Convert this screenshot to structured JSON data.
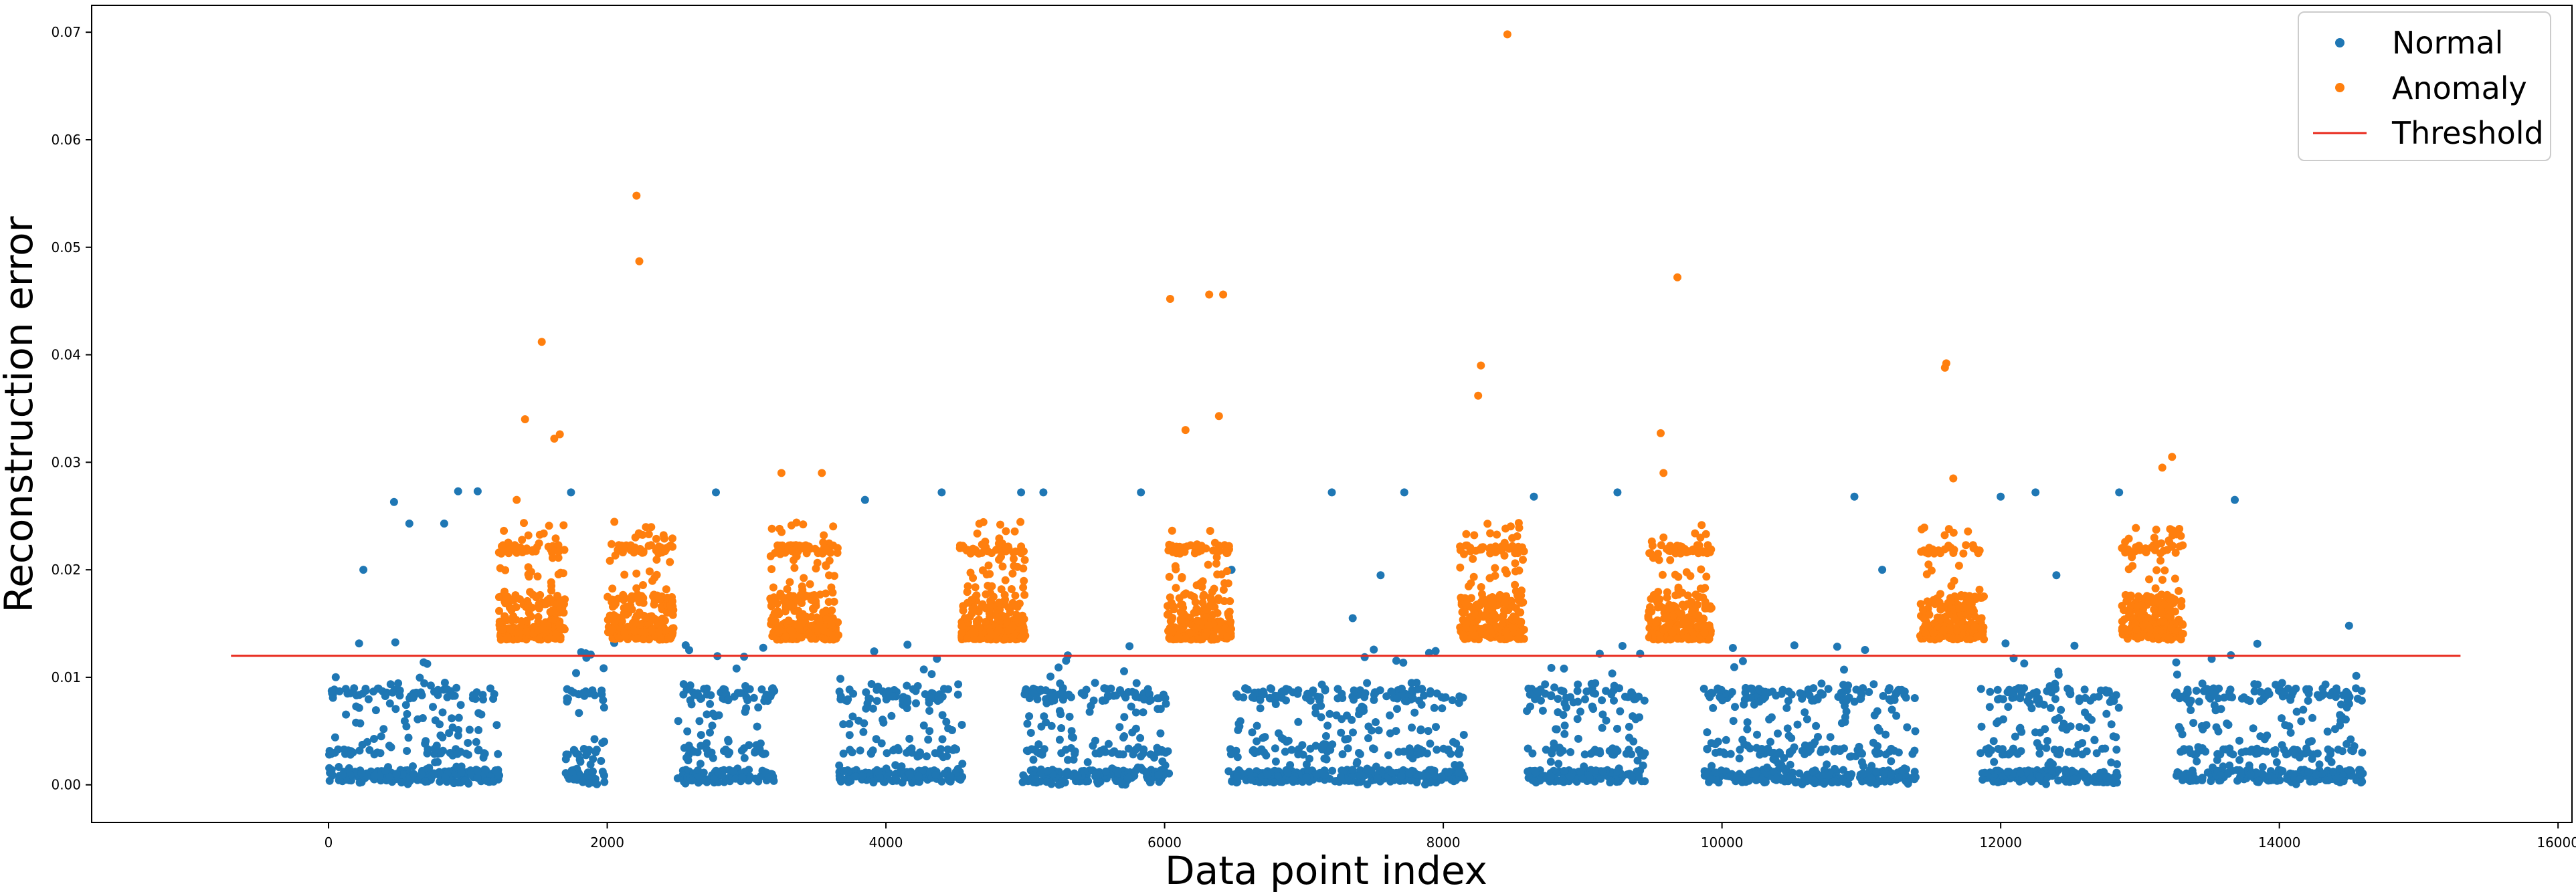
{
  "chart_data": {
    "type": "scatter",
    "title": "",
    "xlabel": "Data point index",
    "ylabel": "Reconstruction error",
    "xlim": [
      -1700,
      16100
    ],
    "ylim": [
      -0.0035,
      0.0725
    ],
    "xticks": [
      0,
      2000,
      4000,
      6000,
      8000,
      10000,
      12000,
      14000,
      16000
    ],
    "xtick_labels": [
      "0",
      "2000",
      "4000",
      "6000",
      "8000",
      "10000",
      "12000",
      "14000",
      "16000"
    ],
    "yticks": [
      0.0,
      0.01,
      0.02,
      0.03,
      0.04,
      0.05,
      0.06,
      0.07
    ],
    "ytick_labels": [
      "0.00",
      "0.01",
      "0.02",
      "0.03",
      "0.04",
      "0.05",
      "0.06",
      "0.07"
    ],
    "grid": false,
    "legend_position": "top-right",
    "legend": [
      "Normal",
      "Anomaly",
      "Threshold"
    ],
    "colors": {
      "normal": "#1f77b4",
      "anomaly": "#ff7f0e",
      "threshold": "#e8291c"
    },
    "threshold": {
      "value": 0.012,
      "x_range": [
        -700,
        15300
      ]
    },
    "normal_clusters": [
      {
        "x_range": [
          0,
          1230
        ]
      },
      {
        "x_range": [
          1700,
          1980
        ]
      },
      {
        "x_range": [
          2500,
          3200
        ]
      },
      {
        "x_range": [
          3660,
          4550
        ]
      },
      {
        "x_range": [
          4980,
          6050
        ]
      },
      {
        "x_range": [
          6450,
          8150
        ]
      },
      {
        "x_range": [
          8600,
          9450
        ]
      },
      {
        "x_range": [
          9870,
          11400
        ]
      },
      {
        "x_range": [
          11850,
          12850
        ]
      },
      {
        "x_range": [
          13250,
          14600
        ]
      }
    ],
    "anomaly_clusters": [
      {
        "x_range": [
          1200,
          1720
        ]
      },
      {
        "x_range": [
          1980,
          2500
        ]
      },
      {
        "x_range": [
          3150,
          3680
        ]
      },
      {
        "x_range": [
          4500,
          5020
        ]
      },
      {
        "x_range": [
          6000,
          6500
        ]
      },
      {
        "x_range": [
          8100,
          8600
        ]
      },
      {
        "x_range": [
          9450,
          9950
        ]
      },
      {
        "x_range": [
          11400,
          11900
        ]
      },
      {
        "x_range": [
          12850,
          13330
        ]
      }
    ],
    "normal_outliers": [
      {
        "x": 250,
        "y": 0.02
      },
      {
        "x": 470,
        "y": 0.0263
      },
      {
        "x": 580,
        "y": 0.0243
      },
      {
        "x": 830,
        "y": 0.0243
      },
      {
        "x": 930,
        "y": 0.0273
      },
      {
        "x": 1070,
        "y": 0.0273
      },
      {
        "x": 1740,
        "y": 0.0272
      },
      {
        "x": 2780,
        "y": 0.0272
      },
      {
        "x": 3850,
        "y": 0.0265
      },
      {
        "x": 4400,
        "y": 0.0272
      },
      {
        "x": 4970,
        "y": 0.0272
      },
      {
        "x": 5130,
        "y": 0.0272
      },
      {
        "x": 5830,
        "y": 0.0272
      },
      {
        "x": 6480,
        "y": 0.02
      },
      {
        "x": 7200,
        "y": 0.0272
      },
      {
        "x": 7550,
        "y": 0.0195
      },
      {
        "x": 7720,
        "y": 0.0272
      },
      {
        "x": 8650,
        "y": 0.0268
      },
      {
        "x": 9250,
        "y": 0.0272
      },
      {
        "x": 10950,
        "y": 0.0268
      },
      {
        "x": 11150,
        "y": 0.02
      },
      {
        "x": 12000,
        "y": 0.0268
      },
      {
        "x": 12250,
        "y": 0.0272
      },
      {
        "x": 12400,
        "y": 0.0195
      },
      {
        "x": 12850,
        "y": 0.0272
      },
      {
        "x": 13680,
        "y": 0.0265
      },
      {
        "x": 14500,
        "y": 0.0148
      },
      {
        "x": 7350,
        "y": 0.0155
      },
      {
        "x": 2050,
        "y": 0.0132
      },
      {
        "x": 10150,
        "y": 0.0115
      }
    ],
    "anomaly_outliers": [
      {
        "x": 1350,
        "y": 0.0265
      },
      {
        "x": 1410,
        "y": 0.034
      },
      {
        "x": 1530,
        "y": 0.0412
      },
      {
        "x": 1620,
        "y": 0.0322
      },
      {
        "x": 1660,
        "y": 0.0326
      },
      {
        "x": 2210,
        "y": 0.0548
      },
      {
        "x": 2230,
        "y": 0.0487
      },
      {
        "x": 3250,
        "y": 0.029
      },
      {
        "x": 3540,
        "y": 0.029
      },
      {
        "x": 6040,
        "y": 0.0452
      },
      {
        "x": 6320,
        "y": 0.0456
      },
      {
        "x": 6420,
        "y": 0.0456
      },
      {
        "x": 6150,
        "y": 0.033
      },
      {
        "x": 6390,
        "y": 0.0343
      },
      {
        "x": 8250,
        "y": 0.0362
      },
      {
        "x": 8270,
        "y": 0.039
      },
      {
        "x": 8460,
        "y": 0.0698
      },
      {
        "x": 9560,
        "y": 0.0327
      },
      {
        "x": 9580,
        "y": 0.029
      },
      {
        "x": 9680,
        "y": 0.0472
      },
      {
        "x": 11600,
        "y": 0.0388
      },
      {
        "x": 11610,
        "y": 0.0392
      },
      {
        "x": 11660,
        "y": 0.0285
      },
      {
        "x": 13230,
        "y": 0.0305
      },
      {
        "x": 13160,
        "y": 0.0295
      }
    ]
  }
}
